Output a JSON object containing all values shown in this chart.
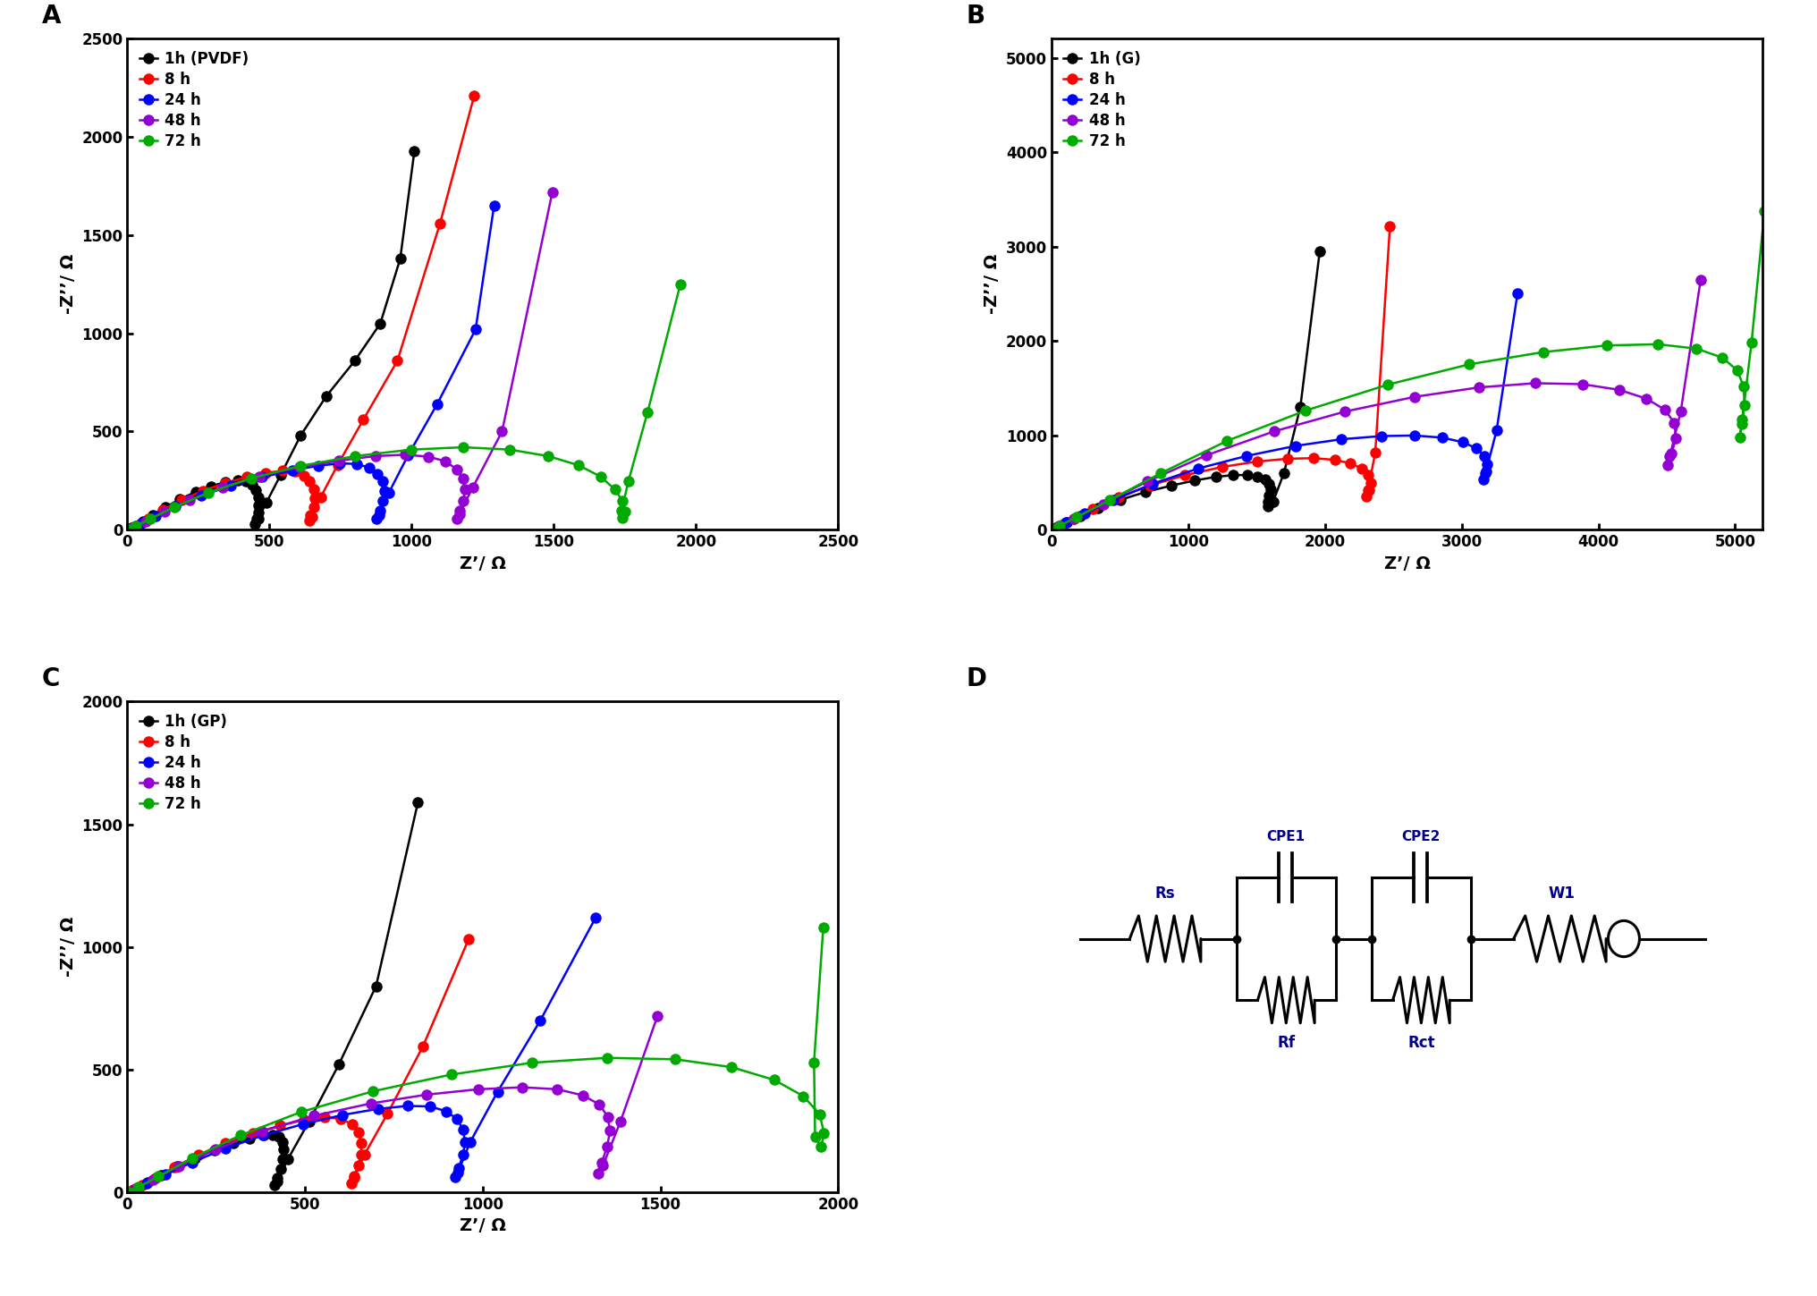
{
  "panel_A": {
    "label": "A",
    "xlabel": "Z’/ Ω",
    "ylabel": "-Z’’/ Ω",
    "xlim": [
      0,
      2500
    ],
    "ylim": [
      0,
      2500
    ],
    "xticks": [
      0,
      500,
      1000,
      1500,
      2000,
      2500
    ],
    "yticks": [
      0,
      500,
      1000,
      1500,
      2000,
      2500
    ],
    "series": [
      {
        "label": "1h (PVDF)",
        "color": "#000000",
        "x": [
          5,
          15,
          30,
          55,
          90,
          135,
          185,
          240,
          295,
          345,
          388,
          418,
          440,
          453,
          460,
          462,
          460,
          455,
          450,
          460,
          490,
          540,
          610,
          700,
          800,
          890,
          960,
          1010
        ],
        "y": [
          2,
          8,
          20,
          42,
          75,
          115,
          155,
          192,
          222,
          242,
          250,
          245,
          228,
          200,
          165,
          125,
          88,
          55,
          30,
          55,
          140,
          280,
          480,
          680,
          860,
          1050,
          1380,
          1930
        ]
      },
      {
        "label": "8 h",
        "color": "#FF0000",
        "x": [
          5,
          18,
          40,
          75,
          125,
          190,
          265,
          345,
          420,
          488,
          545,
          590,
          622,
          642,
          655,
          660,
          655,
          645,
          640,
          650,
          680,
          740,
          830,
          950,
          1100,
          1220
        ],
        "y": [
          2,
          10,
          25,
          55,
          100,
          150,
          198,
          238,
          268,
          290,
          300,
          295,
          275,
          245,
          205,
          160,
          115,
          75,
          45,
          65,
          165,
          330,
          560,
          860,
          1560,
          2210
        ]
      },
      {
        "label": "24 h",
        "color": "#0000FF",
        "x": [
          5,
          20,
          50,
          100,
          170,
          260,
          365,
          475,
          580,
          672,
          748,
          808,
          850,
          880,
          898,
          905,
          900,
          888,
          878,
          885,
          920,
          988,
          1090,
          1225,
          1290
        ],
        "y": [
          2,
          12,
          32,
          68,
          118,
          172,
          225,
          268,
          302,
          326,
          338,
          335,
          316,
          285,
          245,
          198,
          148,
          98,
          58,
          72,
          188,
          380,
          640,
          1020,
          1650
        ]
      },
      {
        "label": "48 h",
        "color": "#9400D3",
        "x": [
          5,
          25,
          65,
          130,
          220,
          335,
          465,
          605,
          745,
          872,
          978,
          1060,
          1120,
          1158,
          1180,
          1188,
          1182,
          1168,
          1158,
          1168,
          1215,
          1318,
          1495
        ],
        "y": [
          2,
          15,
          42,
          90,
          152,
          216,
          272,
          318,
          352,
          375,
          382,
          372,
          348,
          308,
          260,
          205,
          148,
          95,
          58,
          80,
          215,
          500,
          1720
        ]
      },
      {
        "label": "72 h",
        "color": "#00AA00",
        "x": [
          5,
          30,
          80,
          165,
          285,
          435,
          610,
          802,
          998,
          1182,
          1345,
          1480,
          1588,
          1665,
          1715,
          1742,
          1750,
          1740,
          1738,
          1762,
          1830,
          1945
        ],
        "y": [
          2,
          18,
          55,
          115,
          188,
          262,
          325,
          375,
          408,
          420,
          408,
          375,
          328,
          270,
          205,
          145,
          92,
          62,
          95,
          245,
          600,
          1250
        ]
      }
    ]
  },
  "panel_B": {
    "label": "B",
    "xlabel": "Z’/ Ω",
    "ylabel": "-Z’’/ Ω",
    "xlim": [
      0,
      5200
    ],
    "ylim": [
      0,
      5200
    ],
    "xticks": [
      0,
      1000,
      2000,
      3000,
      4000,
      5000
    ],
    "yticks": [
      0,
      1000,
      2000,
      3000,
      4000,
      5000
    ],
    "series": [
      {
        "label": "1h (G)",
        "color": "#000000",
        "x": [
          5,
          22,
          55,
          115,
          210,
          340,
          505,
          690,
          878,
          1050,
          1202,
          1330,
          1432,
          1508,
          1562,
          1592,
          1600,
          1592,
          1582,
          1585,
          1620,
          1700,
          1820,
          1962
        ],
        "y": [
          2,
          12,
          35,
          78,
          145,
          228,
          318,
          400,
          468,
          522,
          560,
          578,
          580,
          562,
          530,
          482,
          425,
          360,
          295,
          248,
          295,
          600,
          1300,
          2950
        ]
      },
      {
        "label": "8 h",
        "color": "#FF0000",
        "x": [
          5,
          28,
          75,
          165,
          302,
          490,
          718,
          978,
          1248,
          1502,
          1728,
          1918,
          2072,
          2188,
          2270,
          2318,
          2335,
          2322,
          2305,
          2315,
          2368,
          2475
        ],
        "y": [
          2,
          18,
          52,
          118,
          218,
          342,
          468,
          578,
          665,
          722,
          752,
          758,
          740,
          702,
          648,
          578,
          498,
          418,
          355,
          418,
          820,
          3210
        ]
      },
      {
        "label": "24 h",
        "color": "#0000FF",
        "x": [
          5,
          38,
          108,
          245,
          455,
          742,
          1072,
          1428,
          1785,
          2118,
          2412,
          2658,
          2858,
          3008,
          3108,
          3168,
          3188,
          3175,
          3162,
          3178,
          3255,
          3408
        ],
        "y": [
          2,
          25,
          75,
          170,
          315,
          488,
          648,
          782,
          888,
          958,
          992,
          998,
          975,
          928,
          862,
          782,
          690,
          598,
          530,
          618,
          1050,
          2500
        ]
      },
      {
        "label": "48 h",
        "color": "#9400D3",
        "x": [
          5,
          55,
          165,
          378,
          702,
          1132,
          1628,
          2148,
          2658,
          3128,
          3538,
          3882,
          4152,
          4352,
          4485,
          4555,
          4568,
          4535,
          4508,
          4522,
          4602,
          4748
        ],
        "y": [
          2,
          38,
          118,
          272,
          512,
          788,
          1042,
          1252,
          1408,
          1508,
          1552,
          1542,
          1482,
          1388,
          1272,
          1132,
          972,
          808,
          680,
          778,
          1250,
          2650
        ]
      },
      {
        "label": "72 h",
        "color": "#00AA00",
        "x": [
          5,
          60,
          185,
          428,
          798,
          1285,
          1858,
          2462,
          3055,
          3598,
          4062,
          4435,
          4718,
          4908,
          5015,
          5062,
          5068,
          5048,
          5035,
          5052,
          5120,
          5215
        ],
        "y": [
          2,
          42,
          135,
          315,
          598,
          942,
          1262,
          1538,
          1752,
          1882,
          1952,
          1965,
          1918,
          1822,
          1688,
          1518,
          1322,
          1122,
          978,
          1165,
          1985,
          3380
        ]
      }
    ]
  },
  "panel_C": {
    "label": "C",
    "xlabel": "Z’/ Ω",
    "ylabel": "-Z’’/ Ω",
    "xlim": [
      0,
      2000
    ],
    "ylim": [
      0,
      2000
    ],
    "xticks": [
      0,
      500,
      1000,
      1500,
      2000
    ],
    "yticks": [
      0,
      500,
      1000,
      1500,
      2000
    ],
    "series": [
      {
        "label": "1h (GP)",
        "color": "#000000",
        "x": [
          5,
          15,
          32,
          58,
          95,
          140,
          190,
          245,
          298,
          345,
          383,
          410,
          428,
          437,
          440,
          438,
          432,
          422,
          415,
          422,
          452,
          512,
          595,
          700,
          818
        ],
        "y": [
          2,
          8,
          20,
          40,
          70,
          105,
          140,
          172,
          200,
          220,
          232,
          235,
          225,
          205,
          175,
          135,
          95,
          58,
          28,
          45,
          135,
          290,
          520,
          840,
          1590
        ]
      },
      {
        "label": "8 h",
        "color": "#FF0000",
        "x": [
          5,
          18,
          42,
          80,
          132,
          200,
          275,
          355,
          430,
          498,
          555,
          600,
          632,
          650,
          658,
          658,
          650,
          638,
          630,
          638,
          668,
          732,
          832,
          960
        ],
        "y": [
          2,
          10,
          28,
          58,
          102,
          152,
          200,
          240,
          272,
          295,
          305,
          300,
          278,
          245,
          202,
          155,
          108,
          65,
          38,
          58,
          155,
          320,
          595,
          1030
        ]
      },
      {
        "label": "24 h",
        "color": "#0000FF",
        "x": [
          5,
          22,
          55,
          108,
          182,
          275,
          382,
          495,
          605,
          705,
          788,
          852,
          898,
          928,
          945,
          950,
          945,
          932,
          922,
          930,
          965,
          1042,
          1162,
          1318
        ],
        "y": [
          2,
          12,
          35,
          72,
          122,
          178,
          232,
          278,
          315,
          340,
          352,
          350,
          330,
          298,
          255,
          205,
          152,
          100,
          62,
          80,
          205,
          410,
          700,
          1120
        ]
      },
      {
        "label": "48 h",
        "color": "#9400D3",
        "x": [
          5,
          28,
          72,
          145,
          248,
          378,
          525,
          685,
          842,
          988,
          1112,
          1210,
          1282,
          1328,
          1352,
          1358,
          1350,
          1335,
          1325,
          1338,
          1388,
          1492
        ],
        "y": [
          2,
          18,
          50,
          105,
          175,
          248,
          312,
          362,
          398,
          420,
          428,
          420,
          395,
          358,
          308,
          250,
          185,
          122,
          78,
          108,
          290,
          720
        ]
      },
      {
        "label": "72 h",
        "color": "#00AA00",
        "x": [
          5,
          32,
          88,
          182,
          318,
          490,
          692,
          912,
          1138,
          1350,
          1542,
          1700,
          1820,
          1902,
          1948,
          1960,
          1952,
          1935,
          1932,
          1958
        ],
        "y": [
          2,
          22,
          65,
          138,
          232,
          328,
          412,
          480,
          528,
          548,
          542,
          510,
          458,
          392,
          318,
          242,
          185,
          225,
          530,
          1080
        ]
      }
    ]
  },
  "panel_D": {
    "label": "D"
  }
}
